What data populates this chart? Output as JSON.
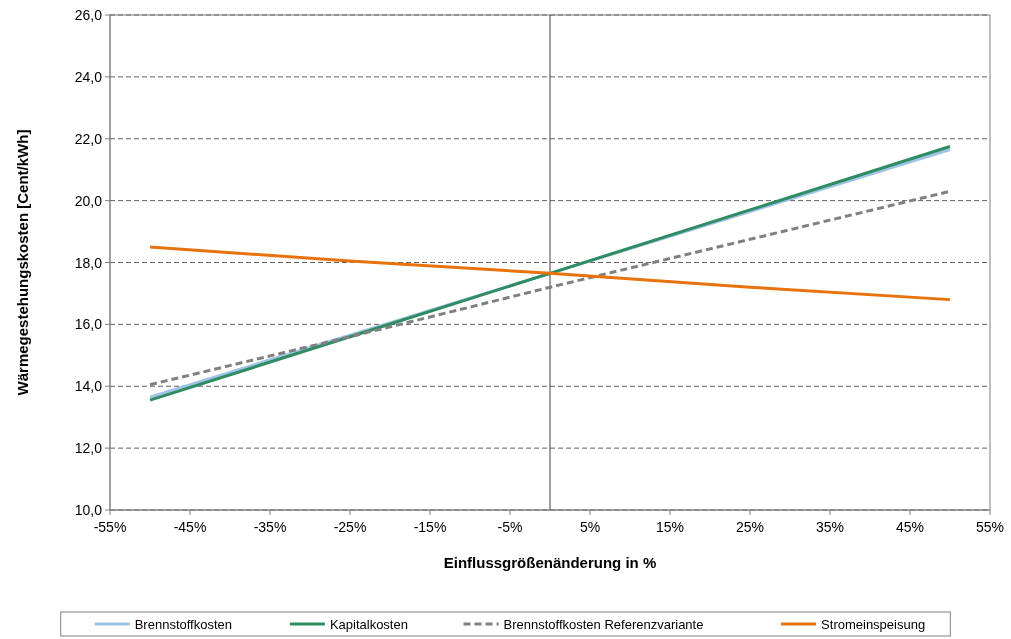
{
  "chart_data": {
    "type": "line",
    "xlabel": "Einflussgrößenänderung in %",
    "ylabel": "Wärmegestehungskosten  [Cent/kWh]",
    "x": [
      -50,
      -25,
      0,
      25,
      50
    ],
    "series": [
      {
        "name": "Brennstoffkosten",
        "color": "#9dc3e6",
        "values": [
          13.65,
          15.65,
          17.65,
          19.65,
          21.65
        ],
        "line_style": "solid"
      },
      {
        "name": "Kapitalkosten",
        "color": "#2e8b62",
        "values": [
          13.55,
          15.6,
          17.65,
          19.7,
          21.75
        ],
        "line_style": "solid"
      },
      {
        "name": "Brennstoffkosten Referenzvariante",
        "color": "#808080",
        "values": [
          14.05,
          15.6,
          17.2,
          18.75,
          20.3
        ],
        "line_style": "dashed"
      },
      {
        "name": "Stromeinspeisung",
        "color": "#e8720c",
        "values": [
          18.5,
          18.05,
          17.65,
          17.2,
          16.8
        ],
        "line_style": "solid"
      }
    ],
    "xlim": [
      -55,
      55
    ],
    "xticks": [
      {
        "value": -55,
        "label": "-55%"
      },
      {
        "value": -45,
        "label": "-45%"
      },
      {
        "value": -35,
        "label": "-35%"
      },
      {
        "value": -25,
        "label": "-25%"
      },
      {
        "value": -15,
        "label": "-15%"
      },
      {
        "value": -5,
        "label": "-5%"
      },
      {
        "value": 5,
        "label": "5%"
      },
      {
        "value": 15,
        "label": "15%"
      },
      {
        "value": 25,
        "label": "25%"
      },
      {
        "value": 35,
        "label": "35%"
      },
      {
        "value": 45,
        "label": "45%"
      },
      {
        "value": 55,
        "label": "55%"
      }
    ],
    "ylim": [
      10,
      26
    ],
    "yticks": [
      {
        "value": 10,
        "label": "10,0"
      },
      {
        "value": 12,
        "label": "12,0"
      },
      {
        "value": 14,
        "label": "14,0"
      },
      {
        "value": 16,
        "label": "16,0"
      },
      {
        "value": 18,
        "label": "18,0"
      },
      {
        "value": 20,
        "label": "20,0"
      },
      {
        "value": 22,
        "label": "22,0"
      },
      {
        "value": 24,
        "label": "24,0"
      },
      {
        "value": 26,
        "label": "26,0"
      }
    ],
    "grid": "y",
    "legend": "bottom",
    "marker": "none",
    "ref_lines": [
      {
        "axis": "x",
        "value": 0,
        "color": "#404040",
        "line_style": "solid"
      }
    ]
  }
}
